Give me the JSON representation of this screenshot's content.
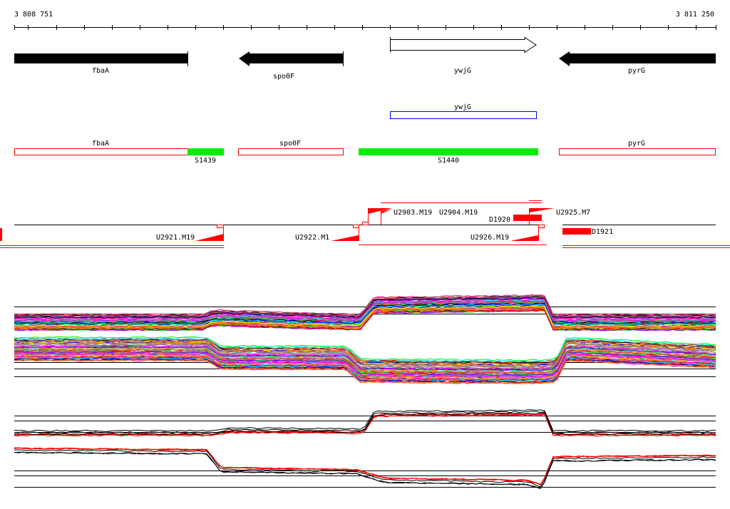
{
  "ruler": {
    "start_label": "3 808 751",
    "end_label": "3 811 250"
  },
  "genes": [
    {
      "name": "fbaA",
      "strand": "+",
      "style": "filled"
    },
    {
      "name": "spo0F",
      "strand": "-",
      "style": "filled"
    },
    {
      "name": "ywjG",
      "strand": "+",
      "style": "hollow"
    },
    {
      "name": "pyrG",
      "strand": "-",
      "style": "filled"
    }
  ],
  "annotation_box": {
    "name": "ywjG"
  },
  "segments": {
    "fbaA": "fbaA",
    "spo0F": "spo0F",
    "pyrG": "pyrG",
    "s1439": "S1439",
    "s1440": "S1440"
  },
  "transcripts": {
    "u2921": "U2921.M19",
    "u2922": "U2922.M1",
    "u2926": "U2926.M19",
    "u2903": "U2903.M19",
    "u2904": "U2904.M19",
    "u2925": "U2925.M7",
    "d1920": "D1920",
    "d1921": "D1921"
  },
  "colors": {
    "segment_green": "#00ee00",
    "transcript_red": "#ff0000",
    "annot_blue": "#0000ff"
  }
}
